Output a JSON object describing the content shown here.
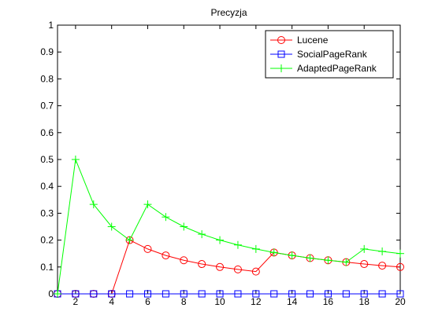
{
  "chart_data": {
    "type": "line",
    "title": "Precyzja",
    "xlabel": "",
    "ylabel": "",
    "xlim": [
      1,
      20
    ],
    "ylim": [
      0,
      1
    ],
    "x_ticks": [
      2,
      4,
      6,
      8,
      10,
      12,
      14,
      16,
      18,
      20
    ],
    "y_ticks": [
      0,
      0.1,
      0.2,
      0.3,
      0.4,
      0.5,
      0.6,
      0.7,
      0.8,
      0.9,
      1
    ],
    "y_tick_labels": [
      "0",
      "0.1",
      "0.2",
      "0.3",
      "0.4",
      "0.5",
      "0.6",
      "0.7",
      "0.8",
      "0.9",
      "1"
    ],
    "x_tick_labels": [
      "2",
      "4",
      "6",
      "8",
      "10",
      "12",
      "14",
      "16",
      "18",
      "20"
    ],
    "grid": false,
    "legend_position": "top-right",
    "x": [
      1,
      2,
      3,
      4,
      5,
      6,
      7,
      8,
      9,
      10,
      11,
      12,
      13,
      14,
      15,
      16,
      17,
      18,
      19,
      20
    ],
    "series": [
      {
        "name": "Lucene",
        "color": "#ff0000",
        "marker": "circle",
        "values": [
          0,
          0,
          0,
          0,
          0.2,
          0.167,
          0.143,
          0.125,
          0.111,
          0.1,
          0.091,
          0.083,
          0.154,
          0.143,
          0.133,
          0.125,
          0.118,
          0.111,
          0.105,
          0.1
        ]
      },
      {
        "name": "SocialPageRank",
        "color": "#0000ff",
        "marker": "square",
        "values": [
          0,
          0,
          0,
          0,
          0,
          0,
          0,
          0,
          0,
          0,
          0,
          0,
          0,
          0,
          0,
          0,
          0,
          0,
          0,
          0
        ]
      },
      {
        "name": "AdaptedPageRank",
        "color": "#00ff00",
        "marker": "plus",
        "values": [
          0,
          0.5,
          0.333,
          0.25,
          0.2,
          0.333,
          0.286,
          0.25,
          0.222,
          0.2,
          0.182,
          0.167,
          0.154,
          0.143,
          0.133,
          0.125,
          0.118,
          0.167,
          0.158,
          0.15
        ]
      }
    ]
  }
}
